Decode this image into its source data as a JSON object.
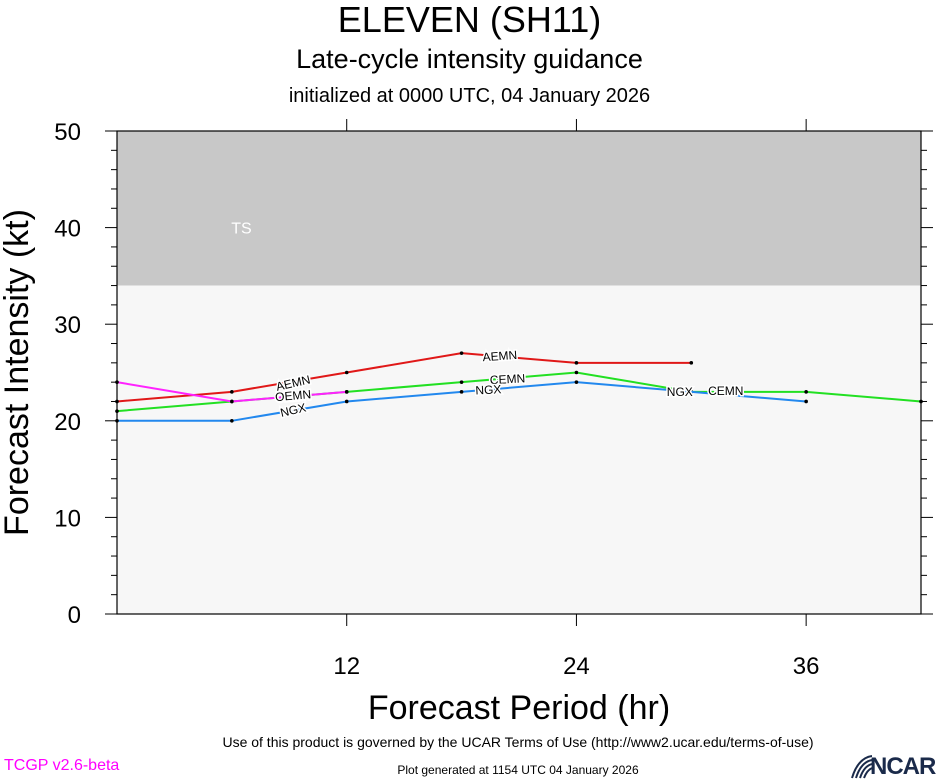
{
  "header": {
    "title": "ELEVEN (SH11)",
    "subtitle": "Late-cycle intensity guidance",
    "initialized": "initialized at 0000 UTC, 04 January 2026"
  },
  "footer": {
    "terms": "Use of this product is governed by the UCAR Terms of Use (http://www2.ucar.edu/terms-of-use)",
    "version": "TCGP v2.6-beta",
    "generated": "Plot generated at 1154 UTC   04 January 2026",
    "logo_text": "NCAR"
  },
  "chart_data": {
    "type": "line",
    "title": "ELEVEN (SH11)",
    "xlabel": "Forecast Period (hr)",
    "ylabel": "Forecast Intensity (kt)",
    "xlim": [
      0,
      42
    ],
    "ylim": [
      0,
      50
    ],
    "xticks": [
      12,
      24,
      36
    ],
    "xtick_labels": [
      "12",
      "24",
      "36"
    ],
    "yticks": [
      0,
      10,
      20,
      30,
      40,
      50
    ],
    "ytick_labels": [
      "0",
      "10",
      "20",
      "30",
      "40",
      "50"
    ],
    "bands": [
      {
        "label": "TS",
        "from": 34,
        "to": 50,
        "color": "#c8c8c8"
      },
      {
        "label": "",
        "from": 0,
        "to": 34,
        "color": "#f7f7f7"
      }
    ],
    "series": [
      {
        "name": "AEMN",
        "color": "#e01818",
        "x": [
          0,
          6,
          12,
          18,
          24,
          30
        ],
        "y": [
          22,
          23,
          25,
          27,
          26,
          26
        ],
        "labels": [
          {
            "text": "AEMN",
            "x": 9.2,
            "y": 23.9,
            "angle": -13
          },
          {
            "text": "AEMN",
            "x": 20,
            "y": 26.7,
            "angle": -4
          }
        ]
      },
      {
        "name": "CEMN",
        "color": "#22e022",
        "x": [
          0,
          6,
          12,
          18,
          24,
          30,
          36,
          42
        ],
        "y": [
          21,
          22,
          23,
          24,
          25,
          23,
          23,
          22
        ],
        "labels": [
          {
            "text": "CEMN",
            "x": 9.2,
            "y": 22.5,
            "angle": -5
          },
          {
            "text": "CEMN",
            "x": 20.4,
            "y": 24.3,
            "angle": -3
          },
          {
            "text": "CEMN",
            "x": 31.8,
            "y": 23.1,
            "angle": 0
          }
        ]
      },
      {
        "name": "OEMN",
        "color": "#ff22ff",
        "x": [
          0,
          6,
          12
        ],
        "y": [
          24,
          22,
          23
        ],
        "labels": [
          {
            "text": "OEMN",
            "x": 9.2,
            "y": 22.6,
            "angle": -5
          }
        ]
      },
      {
        "name": "NGX",
        "color": "#2288ee",
        "x": [
          0,
          6,
          12,
          18,
          24,
          36
        ],
        "y": [
          20,
          20,
          22,
          23,
          24,
          22
        ],
        "labels": [
          {
            "text": "NGX",
            "x": 9.2,
            "y": 21.1,
            "angle": -13
          },
          {
            "text": "NGX",
            "x": 19.4,
            "y": 23.2,
            "angle": -3
          },
          {
            "text": "NGX",
            "x": 29.4,
            "y": 23.0,
            "angle": 0
          }
        ]
      }
    ]
  }
}
